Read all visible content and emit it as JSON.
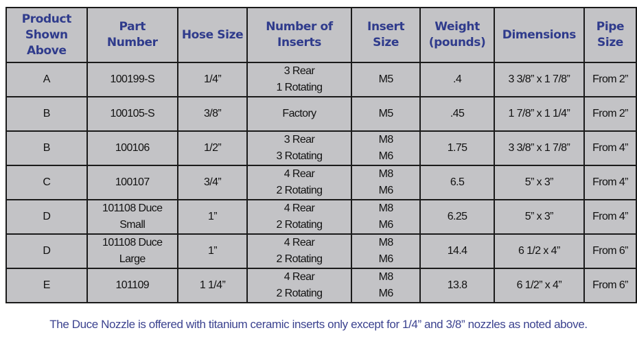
{
  "headers": [
    "Product\nShown\nAbove",
    "Part\nNumber",
    "Hose Size",
    "Number of\nInserts",
    "Insert\nSize",
    "Weight\n(pounds)",
    "Dimensions",
    "Pipe\nSize"
  ],
  "rows": [
    [
      "A",
      "100199-S",
      "1/4”",
      "3 Rear\n1 Rotating",
      "M5",
      ".4",
      "3 3/8” x 1 7/8”",
      "From 2”"
    ],
    [
      "B",
      "100105-S",
      "3/8”",
      "Factory",
      "M5",
      ".45",
      "1 7/8” x 1 1/4”",
      "From 2”"
    ],
    [
      "B",
      "100106",
      "1/2”",
      "3 Rear\n3 Rotating",
      "M8\nM6",
      "1.75",
      "3 3/8” x 1 7/8”",
      "From 4”"
    ],
    [
      "C",
      "100107",
      "3/4”",
      "4 Rear\n2 Rotating",
      "M8\nM6",
      "6.5",
      "5” x 3”",
      "From 4”"
    ],
    [
      "D",
      "101108 Duce\nSmall",
      "1”",
      "4 Rear\n2 Rotating",
      "M8\nM6",
      "6.25",
      "5” x 3”",
      "From 4”"
    ],
    [
      "D",
      "101108 Duce\nLarge",
      "1”",
      "4 Rear\n2 Rotating",
      "M8\nM6",
      "14.4",
      "6 1/2 x 4”",
      "From 6”"
    ],
    [
      "E",
      "101109",
      "1 1/4”",
      "4 Rear\n2 Rotating",
      "M8\nM6",
      "13.8",
      "6 1/2” x 4”",
      "From 6”"
    ]
  ],
  "note": "The Duce Nozzle is offered with titanium ceramic inserts only except for 1/4” and 3/8” nozzles as noted above.",
  "colors": {
    "header_text": "#2f3b8c",
    "table_bg": "#c3c3c6",
    "note_text": "#3b428f"
  }
}
